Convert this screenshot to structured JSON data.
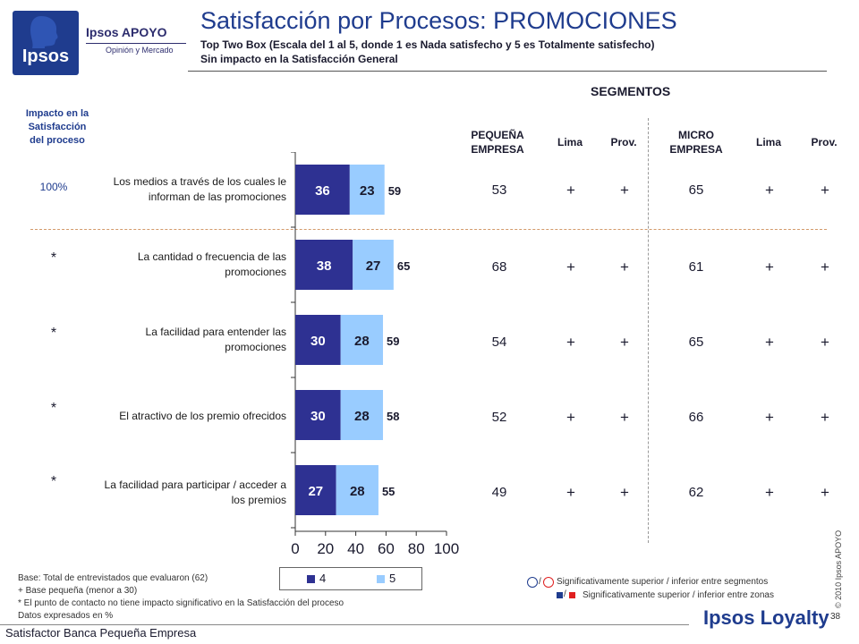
{
  "logo": {
    "mark_text": "Ipsos",
    "brand": "Ipsos APOYO",
    "tagline": "Opinión y Mercado"
  },
  "header": {
    "title": "Satisfacción por Procesos: PROMOCIONES",
    "subtitle1": "Top Two Box  (Escala del 1 al 5, donde 1 es Nada satisfecho y 5 es Totalmente satisfecho)",
    "subtitle2": "Sin impacto en la Satisfacción General"
  },
  "impact_header": [
    "Impacto en la",
    "Satisfacción",
    "del proceso"
  ],
  "segments": {
    "title": "SEGMENTOS",
    "col_pequena": [
      "PEQUEÑA",
      "EMPRESA"
    ],
    "col_lima": "Lima",
    "col_prov": "Prov.",
    "col_micro": [
      "MICRO",
      "EMPRESA"
    ]
  },
  "rows": [
    {
      "impact": "100%",
      "label": [
        "Los medios a través de los cuales le",
        "informan de las promociones"
      ],
      "pequena": "53",
      "lima_p": "+",
      "prov_p": "+",
      "micro": "65",
      "lima_m": "+",
      "prov_m": "+"
    },
    {
      "impact": "*",
      "label": [
        "La cantidad o frecuencia de las",
        "promociones"
      ],
      "pequena": "68",
      "lima_p": "+",
      "prov_p": "+",
      "micro": "61",
      "lima_m": "+",
      "prov_m": "+"
    },
    {
      "impact": "*",
      "label": [
        "La facilidad para entender las",
        "promociones"
      ],
      "pequena": "54",
      "lima_p": "+",
      "prov_p": "+",
      "micro": "65",
      "lima_m": "+",
      "prov_m": "+"
    },
    {
      "impact": "*",
      "label": [
        "El atractivo de los premio ofrecidos"
      ],
      "pequena": "52",
      "lima_p": "+",
      "prov_p": "+",
      "micro": "66",
      "lima_m": "+",
      "prov_m": "+"
    },
    {
      "impact": "*",
      "label": [
        "La facilidad para participar / acceder a",
        "los premios"
      ],
      "pequena": "49",
      "lima_p": "+",
      "prov_p": "+",
      "micro": "62",
      "lima_m": "+",
      "prov_m": "+"
    }
  ],
  "chart_data": {
    "type": "bar",
    "orientation": "horizontal",
    "stacked": true,
    "categories": [
      "Los medios a través de los cuales le informan de las promociones",
      "La cantidad o frecuencia de las promociones",
      "La facilidad para entender las promociones",
      "El atractivo de los premio ofrecidos",
      "La facilidad para participar / acceder a los premios"
    ],
    "series": [
      {
        "name": "4",
        "values": [
          36,
          38,
          30,
          30,
          27
        ],
        "color": "#2e3192"
      },
      {
        "name": "5",
        "values": [
          23,
          27,
          28,
          28,
          28
        ],
        "color": "#99ccff"
      }
    ],
    "totals": [
      59,
      65,
      59,
      58,
      55
    ],
    "xlim": [
      0,
      100
    ],
    "xticks": [
      0,
      20,
      40,
      60,
      80,
      100
    ],
    "grid": false,
    "legend": "bottom"
  },
  "notes": [
    "Base: Total de entrevistados que evaluaron (62)",
    "+ Base pequeña (menor a 30)",
    "* El punto de contacto no tiene impacto significativo en la Satisfacción del proceso",
    "Datos expresados en %"
  ],
  "significance": {
    "circles_sep": "/",
    "circles_text": "Significativamente superior / inferior entre segmentos",
    "squares_sep": "/",
    "squares_text": "Significativamente superior / inferior entre zonas"
  },
  "copyright": "© 2010 Ipsos APOYO",
  "page_number": "38",
  "loyalty_logo": "Ipsos Loyalty",
  "footer": "Satisfactor Banca Pequeña Empresa"
}
